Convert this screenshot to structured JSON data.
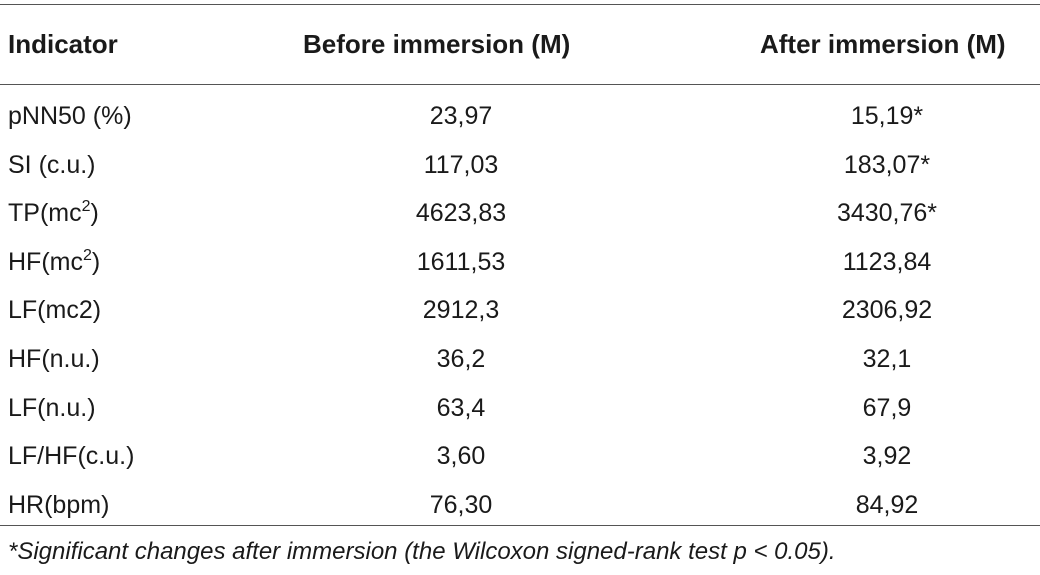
{
  "table": {
    "headers": [
      "Indicator",
      "Before immersion (M)",
      "After immersion (M)"
    ],
    "rows": [
      {
        "indicator": "pNN50 (%)",
        "indicator_sup": "",
        "indicator_post": "",
        "before": "23,97",
        "after": "15,19*"
      },
      {
        "indicator": "SI (c.u.)",
        "indicator_sup": "",
        "indicator_post": "",
        "before": "117,03",
        "after": "183,07*"
      },
      {
        "indicator": "TP(mc",
        "indicator_sup": "2",
        "indicator_post": ")",
        "before": "4623,83",
        "after": "3430,76*"
      },
      {
        "indicator": "HF(mc",
        "indicator_sup": "2",
        "indicator_post": ")",
        "before": "1611,53",
        "after": "1123,84"
      },
      {
        "indicator": "LF(mc2)",
        "indicator_sup": "",
        "indicator_post": "",
        "before": "2912,3",
        "after": "2306,92"
      },
      {
        "indicator": "HF(n.u.)",
        "indicator_sup": "",
        "indicator_post": "",
        "before": "36,2",
        "after": "32,1"
      },
      {
        "indicator": "LF(n.u.)",
        "indicator_sup": "",
        "indicator_post": "",
        "before": "63,4",
        "after": "67,9"
      },
      {
        "indicator": "LF/HF(c.u.)",
        "indicator_sup": "",
        "indicator_post": "",
        "before": "3,60",
        "after": "3,92"
      },
      {
        "indicator": "HR(bpm)",
        "indicator_sup": "",
        "indicator_post": "",
        "before": "76,30",
        "after": "84,92"
      }
    ]
  },
  "footnote": "*Significant changes after immersion (the Wilcoxon signed-rank test p < 0.05)."
}
